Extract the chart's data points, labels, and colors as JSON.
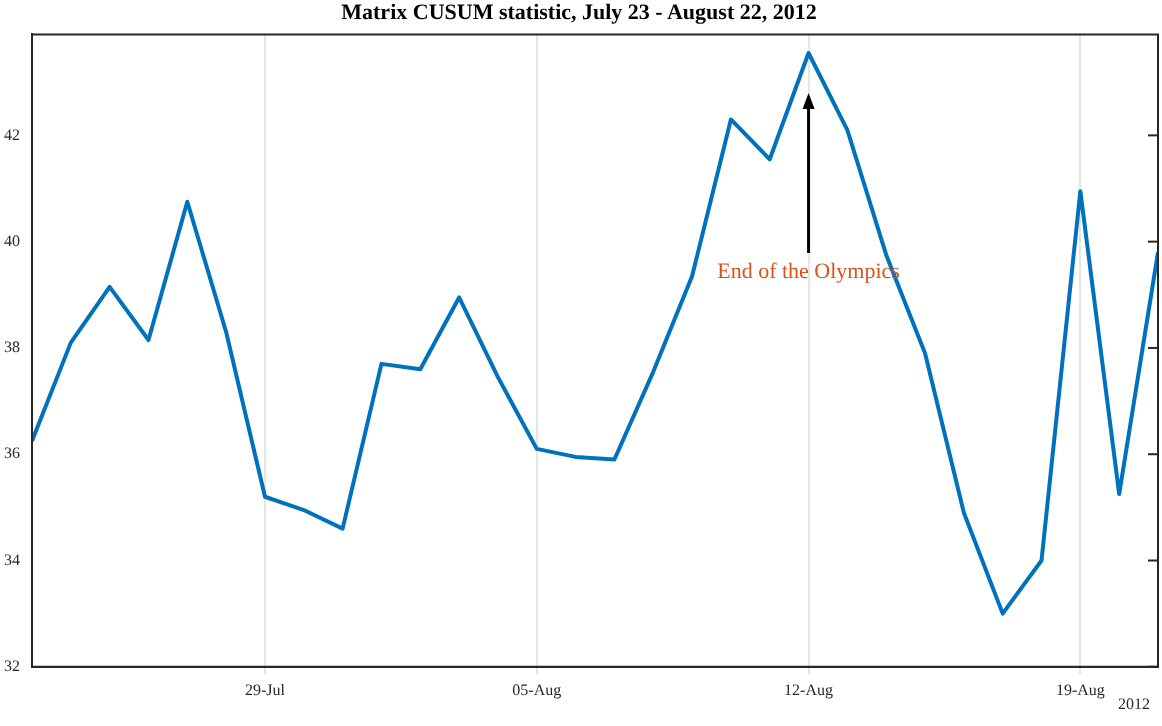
{
  "chart_data": {
    "type": "line",
    "title": "Matrix CUSUM statistic, July 23 - August 22, 2012",
    "x": [
      "2012-07-23",
      "2012-07-24",
      "2012-07-25",
      "2012-07-26",
      "2012-07-27",
      "2012-07-28",
      "2012-07-29",
      "2012-07-30",
      "2012-07-31",
      "2012-08-01",
      "2012-08-02",
      "2012-08-03",
      "2012-08-04",
      "2012-08-05",
      "2012-08-06",
      "2012-08-07",
      "2012-08-08",
      "2012-08-09",
      "2012-08-10",
      "2012-08-11",
      "2012-08-12",
      "2012-08-13",
      "2012-08-14",
      "2012-08-15",
      "2012-08-16",
      "2012-08-17",
      "2012-08-18",
      "2012-08-19",
      "2012-08-20",
      "2012-08-21"
    ],
    "series": [
      {
        "color": "#0072bd",
        "values": [
          36.25,
          38.1,
          39.15,
          38.15,
          40.75,
          38.3,
          35.2,
          34.95,
          34.6,
          37.7,
          37.6,
          38.95,
          37.45,
          36.1,
          35.95,
          35.9,
          37.55,
          39.35,
          42.3,
          41.55,
          43.55,
          42.1,
          39.75,
          37.9,
          34.9,
          33.0,
          34.0,
          40.95,
          35.25,
          39.8
        ]
      }
    ],
    "xlim": [
      "2012-07-23",
      "2012-08-21"
    ],
    "xticks": [
      {
        "value": "2012-07-29",
        "label": "29-Jul"
      },
      {
        "value": "2012-08-05",
        "label": "05-Aug"
      },
      {
        "value": "2012-08-12",
        "label": "12-Aug"
      },
      {
        "value": "2012-08-19",
        "label": "19-Aug"
      }
    ],
    "ylim": [
      32,
      43.9
    ],
    "yticks": [
      32,
      34,
      36,
      38,
      40,
      42
    ],
    "grid": "x",
    "legend": false,
    "marker": "none",
    "line_style": "solid",
    "annotations": [
      "End of the Olympics",
      "2012"
    ]
  }
}
